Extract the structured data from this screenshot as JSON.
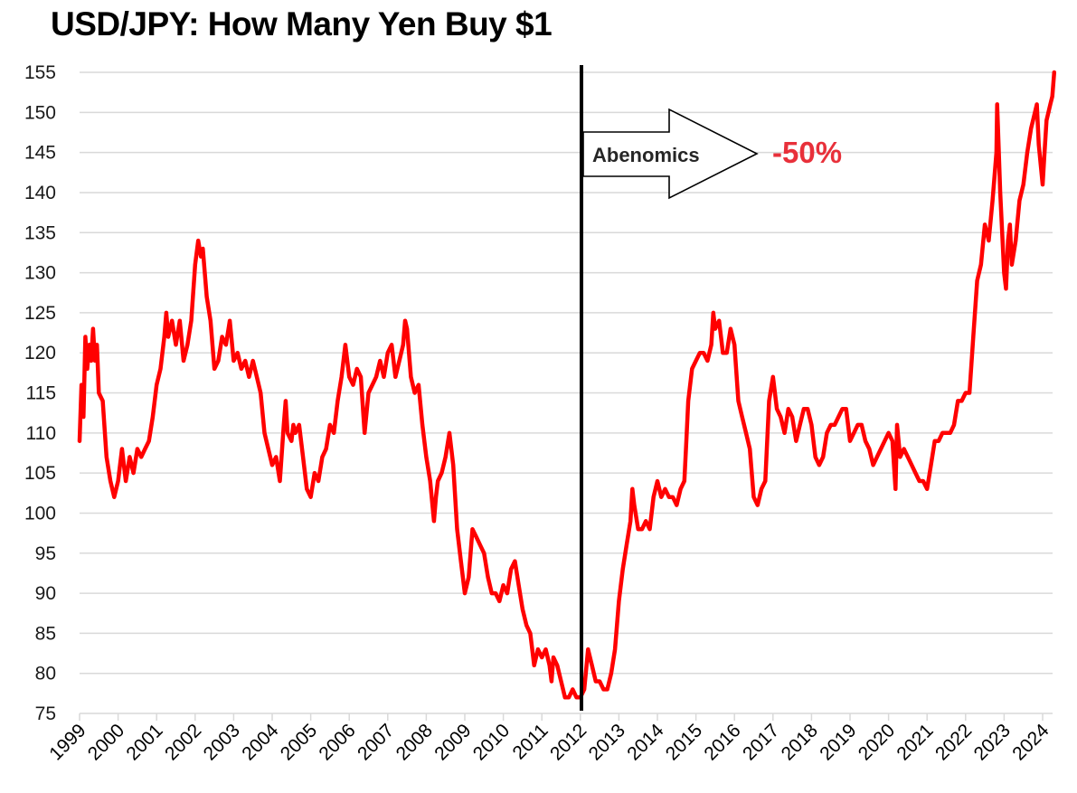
{
  "chart_data": {
    "type": "line",
    "title": "USD/JPY: How Many Yen Buy $1",
    "xlabel": "",
    "ylabel": "",
    "ylim": [
      75,
      155
    ],
    "yticks": [
      75,
      80,
      85,
      90,
      95,
      100,
      105,
      110,
      115,
      120,
      125,
      130,
      135,
      140,
      145,
      150,
      155
    ],
    "xticks": [
      "1999",
      "2000",
      "2001",
      "2002",
      "2003",
      "2004",
      "2005",
      "2006",
      "2007",
      "2008",
      "2009",
      "2010",
      "2011",
      "2012",
      "2013",
      "2014",
      "2015",
      "2016",
      "2017",
      "2018",
      "2019",
      "2020",
      "2021",
      "2022",
      "2023",
      "2024"
    ],
    "grid": true,
    "legend": null,
    "series": [
      {
        "name": "USD/JPY",
        "color": "#ff0000",
        "points": [
          [
            1999.0,
            109
          ],
          [
            1999.05,
            116
          ],
          [
            1999.1,
            112
          ],
          [
            1999.15,
            122
          ],
          [
            1999.2,
            118
          ],
          [
            1999.25,
            121
          ],
          [
            1999.3,
            119
          ],
          [
            1999.35,
            123
          ],
          [
            1999.4,
            119
          ],
          [
            1999.45,
            121
          ],
          [
            1999.5,
            115
          ],
          [
            1999.6,
            114
          ],
          [
            1999.7,
            107
          ],
          [
            1999.8,
            104
          ],
          [
            1999.9,
            102
          ],
          [
            2000.0,
            104
          ],
          [
            2000.1,
            108
          ],
          [
            2000.2,
            104
          ],
          [
            2000.3,
            107
          ],
          [
            2000.4,
            105
          ],
          [
            2000.5,
            108
          ],
          [
            2000.6,
            107
          ],
          [
            2000.7,
            108
          ],
          [
            2000.8,
            109
          ],
          [
            2000.9,
            112
          ],
          [
            2001.0,
            116
          ],
          [
            2001.1,
            118
          ],
          [
            2001.2,
            122
          ],
          [
            2001.25,
            125
          ],
          [
            2001.3,
            122
          ],
          [
            2001.4,
            124
          ],
          [
            2001.5,
            121
          ],
          [
            2001.6,
            124
          ],
          [
            2001.7,
            119
          ],
          [
            2001.8,
            121
          ],
          [
            2001.9,
            124
          ],
          [
            2002.0,
            131
          ],
          [
            2002.08,
            134
          ],
          [
            2002.15,
            132
          ],
          [
            2002.2,
            133
          ],
          [
            2002.3,
            127
          ],
          [
            2002.4,
            124
          ],
          [
            2002.5,
            118
          ],
          [
            2002.6,
            119
          ],
          [
            2002.7,
            122
          ],
          [
            2002.8,
            121
          ],
          [
            2002.9,
            124
          ],
          [
            2003.0,
            119
          ],
          [
            2003.1,
            120
          ],
          [
            2003.2,
            118
          ],
          [
            2003.3,
            119
          ],
          [
            2003.4,
            117
          ],
          [
            2003.5,
            119
          ],
          [
            2003.6,
            117
          ],
          [
            2003.7,
            115
          ],
          [
            2003.8,
            110
          ],
          [
            2003.9,
            108
          ],
          [
            2004.0,
            106
          ],
          [
            2004.1,
            107
          ],
          [
            2004.2,
            104
          ],
          [
            2004.3,
            111
          ],
          [
            2004.35,
            114
          ],
          [
            2004.4,
            110
          ],
          [
            2004.5,
            109
          ],
          [
            2004.55,
            111
          ],
          [
            2004.6,
            110
          ],
          [
            2004.7,
            111
          ],
          [
            2004.8,
            107
          ],
          [
            2004.9,
            103
          ],
          [
            2005.0,
            102
          ],
          [
            2005.1,
            105
          ],
          [
            2005.2,
            104
          ],
          [
            2005.3,
            107
          ],
          [
            2005.4,
            108
          ],
          [
            2005.5,
            111
          ],
          [
            2005.6,
            110
          ],
          [
            2005.7,
            114
          ],
          [
            2005.8,
            117
          ],
          [
            2005.9,
            121
          ],
          [
            2006.0,
            117
          ],
          [
            2006.1,
            116
          ],
          [
            2006.2,
            118
          ],
          [
            2006.3,
            117
          ],
          [
            2006.4,
            110
          ],
          [
            2006.5,
            115
          ],
          [
            2006.6,
            116
          ],
          [
            2006.7,
            117
          ],
          [
            2006.8,
            119
          ],
          [
            2006.9,
            117
          ],
          [
            2007.0,
            120
          ],
          [
            2007.1,
            121
          ],
          [
            2007.2,
            117
          ],
          [
            2007.3,
            119
          ],
          [
            2007.4,
            121
          ],
          [
            2007.45,
            124
          ],
          [
            2007.5,
            123
          ],
          [
            2007.6,
            117
          ],
          [
            2007.7,
            115
          ],
          [
            2007.8,
            116
          ],
          [
            2007.9,
            111
          ],
          [
            2008.0,
            107
          ],
          [
            2008.1,
            104
          ],
          [
            2008.2,
            99
          ],
          [
            2008.25,
            102
          ],
          [
            2008.3,
            104
          ],
          [
            2008.4,
            105
          ],
          [
            2008.5,
            107
          ],
          [
            2008.6,
            110
          ],
          [
            2008.7,
            106
          ],
          [
            2008.8,
            98
          ],
          [
            2008.9,
            94
          ],
          [
            2009.0,
            90
          ],
          [
            2009.1,
            92
          ],
          [
            2009.2,
            98
          ],
          [
            2009.3,
            97
          ],
          [
            2009.4,
            96
          ],
          [
            2009.5,
            95
          ],
          [
            2009.6,
            92
          ],
          [
            2009.7,
            90
          ],
          [
            2009.8,
            90
          ],
          [
            2009.9,
            89
          ],
          [
            2010.0,
            91
          ],
          [
            2010.1,
            90
          ],
          [
            2010.2,
            93
          ],
          [
            2010.3,
            94
          ],
          [
            2010.4,
            91
          ],
          [
            2010.5,
            88
          ],
          [
            2010.6,
            86
          ],
          [
            2010.7,
            85
          ],
          [
            2010.8,
            81
          ],
          [
            2010.9,
            83
          ],
          [
            2011.0,
            82
          ],
          [
            2011.1,
            83
          ],
          [
            2011.2,
            81
          ],
          [
            2011.25,
            79
          ],
          [
            2011.3,
            82
          ],
          [
            2011.4,
            81
          ],
          [
            2011.5,
            79
          ],
          [
            2011.6,
            77
          ],
          [
            2011.7,
            77
          ],
          [
            2011.8,
            78
          ],
          [
            2011.9,
            77
          ],
          [
            2012.0,
            77
          ],
          [
            2012.1,
            78
          ],
          [
            2012.2,
            83
          ],
          [
            2012.3,
            81
          ],
          [
            2012.4,
            79
          ],
          [
            2012.5,
            79
          ],
          [
            2012.6,
            78
          ],
          [
            2012.7,
            78
          ],
          [
            2012.8,
            80
          ],
          [
            2012.9,
            83
          ],
          [
            2013.0,
            89
          ],
          [
            2013.1,
            93
          ],
          [
            2013.2,
            96
          ],
          [
            2013.3,
            99
          ],
          [
            2013.35,
            103
          ],
          [
            2013.4,
            101
          ],
          [
            2013.5,
            98
          ],
          [
            2013.6,
            98
          ],
          [
            2013.7,
            99
          ],
          [
            2013.8,
            98
          ],
          [
            2013.9,
            102
          ],
          [
            2014.0,
            104
          ],
          [
            2014.1,
            102
          ],
          [
            2014.2,
            103
          ],
          [
            2014.3,
            102
          ],
          [
            2014.4,
            102
          ],
          [
            2014.5,
            101
          ],
          [
            2014.6,
            103
          ],
          [
            2014.7,
            104
          ],
          [
            2014.75,
            109
          ],
          [
            2014.8,
            114
          ],
          [
            2014.9,
            118
          ],
          [
            2015.0,
            119
          ],
          [
            2015.1,
            120
          ],
          [
            2015.2,
            120
          ],
          [
            2015.3,
            119
          ],
          [
            2015.4,
            121
          ],
          [
            2015.45,
            125
          ],
          [
            2015.5,
            123
          ],
          [
            2015.6,
            124
          ],
          [
            2015.7,
            120
          ],
          [
            2015.8,
            120
          ],
          [
            2015.9,
            123
          ],
          [
            2016.0,
            121
          ],
          [
            2016.1,
            114
          ],
          [
            2016.2,
            112
          ],
          [
            2016.3,
            110
          ],
          [
            2016.4,
            108
          ],
          [
            2016.5,
            102
          ],
          [
            2016.6,
            101
          ],
          [
            2016.7,
            103
          ],
          [
            2016.8,
            104
          ],
          [
            2016.9,
            114
          ],
          [
            2017.0,
            117
          ],
          [
            2017.1,
            113
          ],
          [
            2017.2,
            112
          ],
          [
            2017.3,
            110
          ],
          [
            2017.4,
            113
          ],
          [
            2017.5,
            112
          ],
          [
            2017.6,
            109
          ],
          [
            2017.7,
            111
          ],
          [
            2017.8,
            113
          ],
          [
            2017.9,
            113
          ],
          [
            2018.0,
            111
          ],
          [
            2018.1,
            107
          ],
          [
            2018.2,
            106
          ],
          [
            2018.3,
            107
          ],
          [
            2018.4,
            110
          ],
          [
            2018.5,
            111
          ],
          [
            2018.6,
            111
          ],
          [
            2018.7,
            112
          ],
          [
            2018.8,
            113
          ],
          [
            2018.9,
            113
          ],
          [
            2019.0,
            109
          ],
          [
            2019.1,
            110
          ],
          [
            2019.2,
            111
          ],
          [
            2019.3,
            111
          ],
          [
            2019.4,
            109
          ],
          [
            2019.5,
            108
          ],
          [
            2019.6,
            106
          ],
          [
            2019.7,
            107
          ],
          [
            2019.8,
            108
          ],
          [
            2019.9,
            109
          ],
          [
            2020.0,
            110
          ],
          [
            2020.1,
            109
          ],
          [
            2020.18,
            103
          ],
          [
            2020.22,
            111
          ],
          [
            2020.3,
            107
          ],
          [
            2020.4,
            108
          ],
          [
            2020.5,
            107
          ],
          [
            2020.6,
            106
          ],
          [
            2020.7,
            105
          ],
          [
            2020.8,
            104
          ],
          [
            2020.9,
            104
          ],
          [
            2021.0,
            103
          ],
          [
            2021.1,
            106
          ],
          [
            2021.2,
            109
          ],
          [
            2021.3,
            109
          ],
          [
            2021.4,
            110
          ],
          [
            2021.5,
            110
          ],
          [
            2021.6,
            110
          ],
          [
            2021.7,
            111
          ],
          [
            2021.8,
            114
          ],
          [
            2021.9,
            114
          ],
          [
            2022.0,
            115
          ],
          [
            2022.1,
            115
          ],
          [
            2022.2,
            122
          ],
          [
            2022.3,
            129
          ],
          [
            2022.4,
            131
          ],
          [
            2022.5,
            136
          ],
          [
            2022.6,
            134
          ],
          [
            2022.7,
            139
          ],
          [
            2022.8,
            145
          ],
          [
            2022.82,
            151
          ],
          [
            2022.9,
            140
          ],
          [
            2023.0,
            130
          ],
          [
            2023.05,
            128
          ],
          [
            2023.1,
            134
          ],
          [
            2023.15,
            136
          ],
          [
            2023.2,
            131
          ],
          [
            2023.3,
            134
          ],
          [
            2023.4,
            139
          ],
          [
            2023.5,
            141
          ],
          [
            2023.6,
            145
          ],
          [
            2023.7,
            148
          ],
          [
            2023.8,
            150
          ],
          [
            2023.85,
            151
          ],
          [
            2023.9,
            146
          ],
          [
            2024.0,
            141
          ],
          [
            2024.05,
            145
          ],
          [
            2024.1,
            149
          ],
          [
            2024.15,
            150
          ],
          [
            2024.2,
            151
          ],
          [
            2024.25,
            152
          ],
          [
            2024.3,
            155
          ]
        ]
      }
    ],
    "annotations": [
      {
        "type": "vline",
        "x": 2012.0,
        "label": "Abenomics"
      },
      {
        "type": "arrow",
        "text": "Abenomics",
        "direction": "right"
      },
      {
        "type": "text",
        "text": "-50%",
        "color": "#e8303a"
      }
    ]
  },
  "header": {
    "title": "USD/JPY: How Many Yen Buy $1"
  },
  "annotation": {
    "arrow_label": "Abenomics",
    "change_label": "-50%"
  },
  "axes": {
    "y_labels": [
      "155",
      "150",
      "145",
      "140",
      "135",
      "130",
      "125",
      "120",
      "115",
      "110",
      "105",
      "100",
      "95",
      "90",
      "85",
      "80",
      "75"
    ],
    "x_labels": [
      "1999",
      "2000",
      "2001",
      "2002",
      "2003",
      "2004",
      "2005",
      "2006",
      "2007",
      "2008",
      "2009",
      "2010",
      "2011",
      "2012",
      "2013",
      "2014",
      "2015",
      "2016",
      "2017",
      "2018",
      "2019",
      "2020",
      "2021",
      "2022",
      "2023",
      "2024"
    ]
  },
  "colors": {
    "line": "#ff0000",
    "grid": "#d9d9d9",
    "highlight": "#e8303a",
    "vline": "#000000"
  }
}
